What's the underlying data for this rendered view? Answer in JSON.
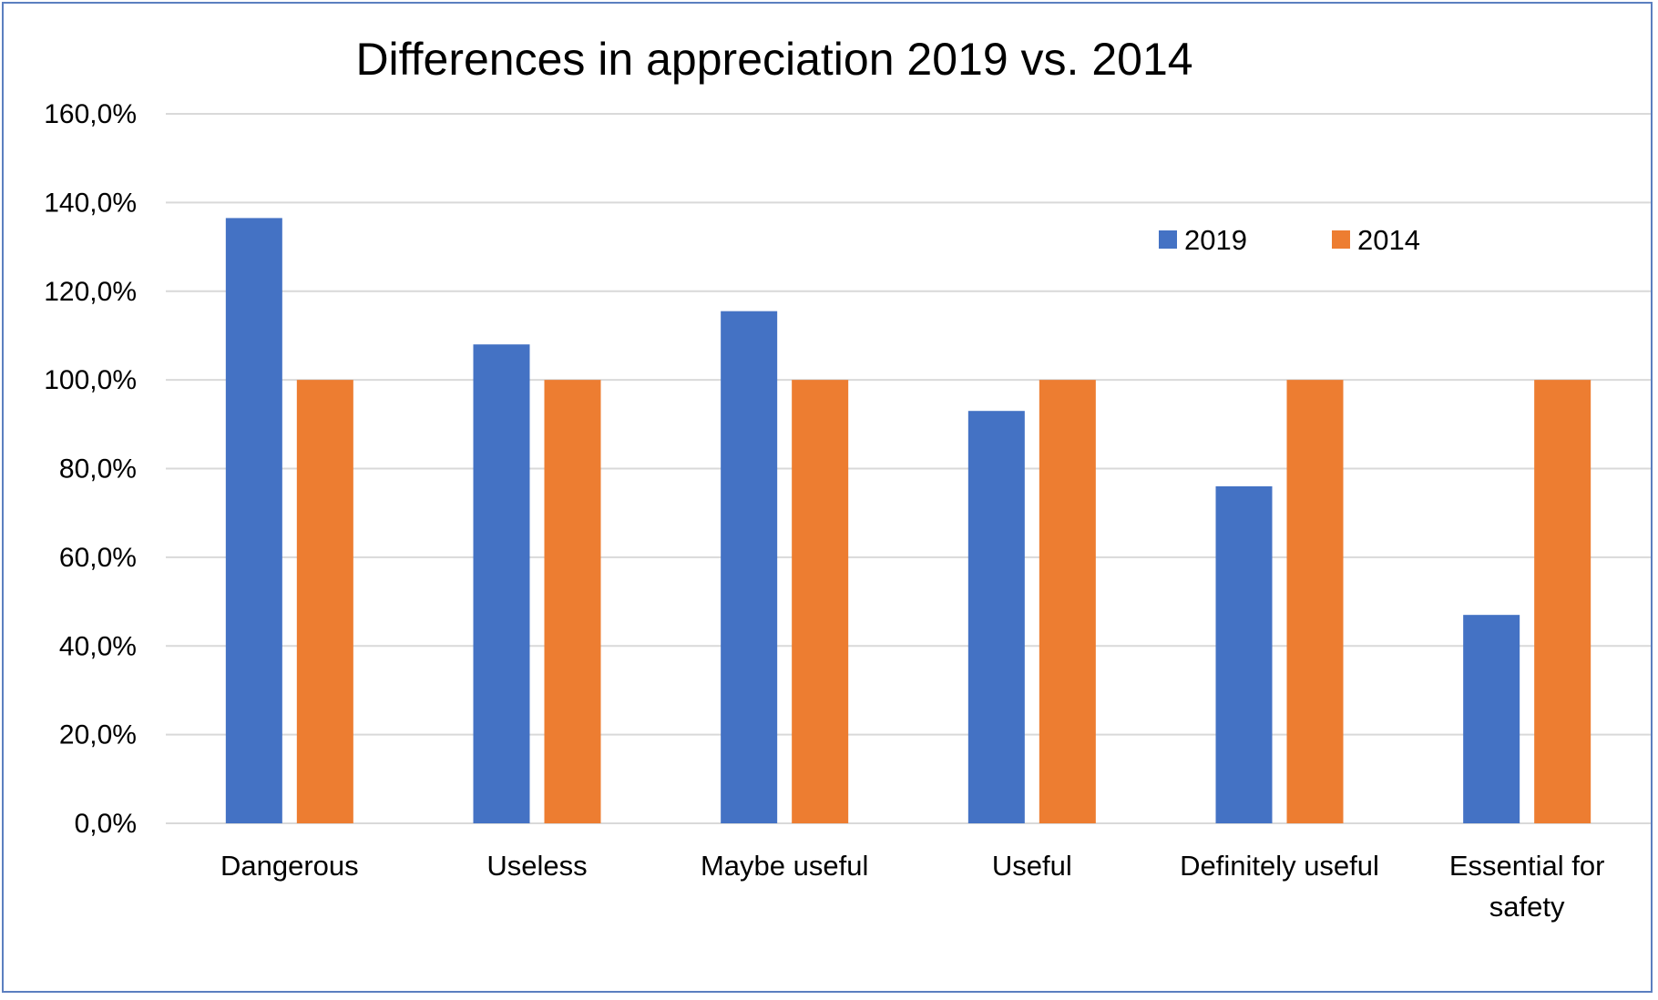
{
  "chart_data": {
    "type": "bar",
    "title": "Differences in appreciation 2019 vs. 2014",
    "xlabel": "",
    "ylabel": "",
    "ylim": [
      0,
      160
    ],
    "y_ticks": [
      "0,0%",
      "20,0%",
      "40,0%",
      "60,0%",
      "80,0%",
      "100,0%",
      "120,0%",
      "140,0%",
      "160,0%"
    ],
    "categories": [
      [
        "Dangerous"
      ],
      [
        "Useless"
      ],
      [
        "Maybe useful"
      ],
      [
        "Useful"
      ],
      [
        "Definitely useful"
      ],
      [
        "Essential for",
        "safety"
      ]
    ],
    "series": [
      {
        "name": "2019",
        "color": "#4472c4",
        "values": [
          136.5,
          108,
          115.5,
          93,
          76,
          47
        ]
      },
      {
        "name": "2014",
        "color": "#ed7d31",
        "values": [
          100,
          100,
          100,
          100,
          100,
          100
        ]
      }
    ],
    "grid": true,
    "legend_position": "top-right"
  }
}
